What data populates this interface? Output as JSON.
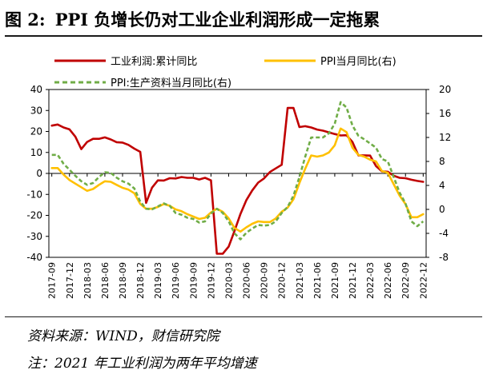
{
  "figure": {
    "number": "图 2:",
    "title": "PPI 负增长仍对工业企业利润形成一定拖累"
  },
  "notes": {
    "source": "资料来源：WIND，财信研究院",
    "note": "注：2021 年工业利润为两年平均增速"
  },
  "chart_data": {
    "type": "line",
    "x": [
      "2017-09",
      "2017-10",
      "2017-11",
      "2017-12",
      "2018-01",
      "2018-02",
      "2018-03",
      "2018-04",
      "2018-05",
      "2018-06",
      "2018-07",
      "2018-08",
      "2018-09",
      "2018-10",
      "2018-11",
      "2018-12",
      "2019-01",
      "2019-02",
      "2019-03",
      "2019-04",
      "2019-05",
      "2019-06",
      "2019-07",
      "2019-08",
      "2019-09",
      "2019-10",
      "2019-11",
      "2019-12",
      "2020-01",
      "2020-02",
      "2020-03",
      "2020-04",
      "2020-05",
      "2020-06",
      "2020-07",
      "2020-08",
      "2020-09",
      "2020-10",
      "2020-11",
      "2020-12",
      "2021-01",
      "2021-02",
      "2021-03",
      "2021-04",
      "2021-05",
      "2021-06",
      "2021-07",
      "2021-08",
      "2021-09",
      "2021-10",
      "2021-11",
      "2021-12",
      "2022-01",
      "2022-02",
      "2022-03",
      "2022-04",
      "2022-05",
      "2022-06",
      "2022-07",
      "2022-08",
      "2022-09",
      "2022-10",
      "2022-11",
      "2022-12"
    ],
    "xticks": [
      "2017-09",
      "2017-12",
      "2018-03",
      "2018-06",
      "2018-09",
      "2018-12",
      "2019-03",
      "2019-06",
      "2019-09",
      "2019-12",
      "2020-03",
      "2020-06",
      "2020-09",
      "2020-12",
      "2021-03",
      "2021-06",
      "2021-09",
      "2021-12",
      "2022-03",
      "2022-06",
      "2022-09",
      "2022-12"
    ],
    "y_left": {
      "ticks": [
        40,
        30,
        20,
        10,
        0,
        -10,
        -20,
        -30,
        -40
      ],
      "ylim": [
        -40,
        40
      ]
    },
    "y_right": {
      "ticks": [
        20,
        16,
        12,
        8,
        4,
        0,
        -4,
        -8
      ],
      "ylim": [
        -8,
        20
      ]
    },
    "legend_placement": "top",
    "series": [
      {
        "name": "工业利润:累计同比",
        "axis": "left",
        "color": "#c00000",
        "style": "solid",
        "values": [
          22.8,
          23.3,
          21.9,
          21.0,
          17.5,
          11.6,
          15.0,
          16.5,
          16.5,
          17.2,
          16.2,
          14.9,
          14.7,
          13.6,
          11.8,
          10.3,
          -14.0,
          -6.8,
          -3.3,
          -3.4,
          -2.3,
          -2.4,
          -1.7,
          -2.1,
          -2.1,
          -2.9,
          -2.1,
          -3.3,
          -38.3,
          -38.3,
          -34.9,
          -27.4,
          -19.3,
          -12.8,
          -8.1,
          -4.4,
          -2.4,
          0.7,
          2.4,
          4.1,
          31.2,
          31.2,
          22.1,
          22.5,
          21.9,
          20.9,
          20.4,
          19.6,
          18.8,
          18.1,
          18.2,
          15.0,
          8.6,
          8.6,
          8.5,
          3.5,
          1.0,
          0.8,
          -1.1,
          -2.1,
          -2.3,
          -3.0,
          -3.6,
          -4.0
        ]
      },
      {
        "name": "PPI当月同比(右)",
        "axis": "right",
        "color": "#ffc000",
        "style": "solid",
        "values": [
          6.9,
          6.9,
          5.8,
          4.9,
          4.3,
          3.7,
          3.1,
          3.4,
          4.1,
          4.7,
          4.6,
          4.1,
          3.6,
          3.3,
          2.7,
          0.9,
          0.1,
          0.1,
          0.4,
          0.9,
          0.6,
          0.0,
          -0.3,
          -0.8,
          -1.2,
          -1.6,
          -1.4,
          -0.5,
          0.1,
          -0.4,
          -1.5,
          -3.1,
          -3.7,
          -3.0,
          -2.4,
          -2.0,
          -2.1,
          -2.1,
          -1.5,
          -0.4,
          0.3,
          1.7,
          4.4,
          6.8,
          9.0,
          8.8,
          9.0,
          9.5,
          10.7,
          13.5,
          12.9,
          10.3,
          9.1,
          8.8,
          8.3,
          8.0,
          6.4,
          6.1,
          4.2,
          2.3,
          0.9,
          -1.3,
          -1.3,
          -0.8
        ]
      },
      {
        "name": "PPI:生产资料当月同比(右)",
        "axis": "right",
        "color": "#70ad47",
        "style": "dashed",
        "values": [
          9.1,
          9.1,
          7.6,
          6.6,
          5.6,
          4.7,
          4.1,
          4.4,
          5.4,
          6.2,
          6.1,
          5.3,
          4.7,
          4.3,
          3.5,
          1.3,
          0.1,
          0.0,
          0.5,
          1.0,
          0.6,
          -0.6,
          -0.9,
          -1.4,
          -1.6,
          -2.2,
          -2.0,
          -0.7,
          0.1,
          -0.6,
          -2.0,
          -4.0,
          -5.0,
          -3.9,
          -3.2,
          -2.6,
          -2.7,
          -2.6,
          -2.0,
          -0.6,
          0.4,
          2.3,
          5.4,
          8.8,
          12.0,
          12.0,
          12.0,
          12.7,
          14.3,
          17.9,
          17.0,
          14.0,
          12.3,
          11.7,
          11.0,
          10.3,
          8.4,
          8.0,
          5.4,
          2.8,
          1.0,
          -2.0,
          -2.8,
          -2.0
        ]
      }
    ]
  }
}
